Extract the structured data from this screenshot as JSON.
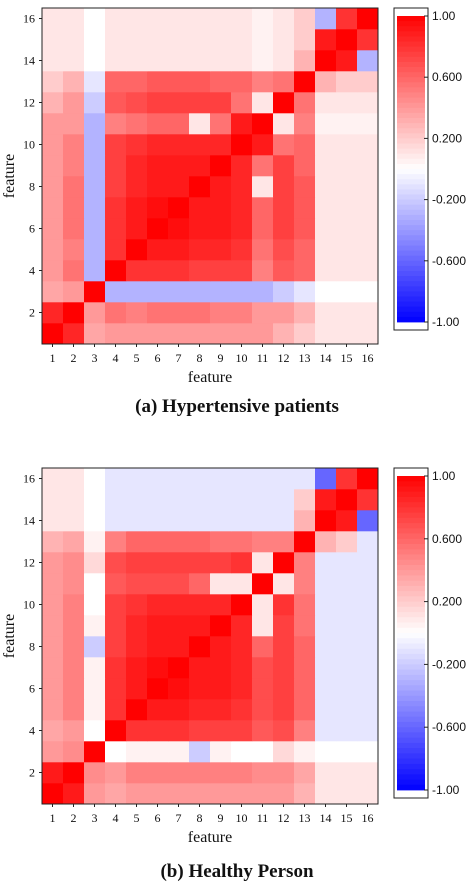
{
  "chart_data": [
    {
      "type": "heatmap",
      "caption": "(a) Hypertensive patients",
      "xlabel": "feature",
      "ylabel": "feature",
      "x_ticks": [
        "1",
        "2",
        "3",
        "4",
        "5",
        "6",
        "7",
        "8",
        "9",
        "10",
        "11",
        "12",
        "13",
        "14",
        "15",
        "16"
      ],
      "y_ticks": [
        "2",
        "4",
        "6",
        "8",
        "10",
        "12",
        "14",
        "16"
      ],
      "colorbar_ticks": [
        "1.00",
        "0.600",
        "0.200",
        "-0.200",
        "-0.600",
        "-1.00"
      ],
      "colorbar_values": [
        1.0,
        0.6,
        0.2,
        -0.2,
        -0.6,
        -1.0
      ],
      "vmin": -1.0,
      "vmax": 1.0,
      "colors": {
        "low": "#0000ff",
        "mid": "#ffffff",
        "high": "#ff0000"
      },
      "matrix": [
        [
          1.0,
          0.85,
          0.35,
          0.4,
          0.4,
          0.4,
          0.4,
          0.4,
          0.4,
          0.4,
          0.4,
          0.3,
          0.2,
          0.1,
          0.1,
          0.1
        ],
        [
          0.85,
          1.0,
          0.4,
          0.55,
          0.5,
          0.55,
          0.55,
          0.55,
          0.5,
          0.5,
          0.4,
          0.4,
          0.3,
          0.1,
          0.1,
          0.1
        ],
        [
          0.35,
          0.4,
          1.0,
          -0.3,
          -0.3,
          -0.3,
          -0.3,
          -0.3,
          -0.3,
          -0.3,
          -0.3,
          -0.2,
          -0.1,
          0.0,
          0.0,
          0.0
        ],
        [
          0.4,
          0.55,
          -0.3,
          1.0,
          0.8,
          0.8,
          0.8,
          0.75,
          0.75,
          0.75,
          0.5,
          0.65,
          0.6,
          0.1,
          0.1,
          0.1
        ],
        [
          0.4,
          0.5,
          -0.3,
          0.8,
          1.0,
          0.9,
          0.9,
          0.85,
          0.85,
          0.8,
          0.55,
          0.7,
          0.6,
          0.1,
          0.1,
          0.1
        ],
        [
          0.4,
          0.55,
          -0.3,
          0.8,
          0.9,
          1.0,
          0.95,
          0.9,
          0.9,
          0.85,
          0.6,
          0.75,
          0.65,
          0.1,
          0.1,
          0.1
        ],
        [
          0.4,
          0.55,
          -0.3,
          0.8,
          0.9,
          0.95,
          1.0,
          0.9,
          0.9,
          0.85,
          0.6,
          0.75,
          0.65,
          0.1,
          0.1,
          0.1
        ],
        [
          0.4,
          0.55,
          -0.3,
          0.75,
          0.85,
          0.9,
          0.9,
          1.0,
          0.9,
          0.85,
          0.1,
          0.75,
          0.65,
          0.1,
          0.1,
          0.1
        ],
        [
          0.4,
          0.5,
          -0.3,
          0.75,
          0.85,
          0.9,
          0.9,
          0.9,
          1.0,
          0.85,
          0.55,
          0.75,
          0.6,
          0.1,
          0.1,
          0.1
        ],
        [
          0.4,
          0.5,
          -0.3,
          0.75,
          0.8,
          0.85,
          0.85,
          0.85,
          0.85,
          1.0,
          0.9,
          0.55,
          0.6,
          0.1,
          0.1,
          0.1
        ],
        [
          0.4,
          0.4,
          -0.3,
          0.5,
          0.55,
          0.6,
          0.6,
          0.1,
          0.55,
          0.9,
          1.0,
          0.1,
          0.5,
          0.05,
          0.05,
          0.05
        ],
        [
          0.3,
          0.4,
          -0.2,
          0.65,
          0.7,
          0.75,
          0.75,
          0.75,
          0.75,
          0.55,
          0.1,
          1.0,
          0.55,
          0.1,
          0.1,
          0.1
        ],
        [
          0.2,
          0.3,
          -0.1,
          0.6,
          0.6,
          0.65,
          0.65,
          0.65,
          0.6,
          0.6,
          0.5,
          0.55,
          1.0,
          0.3,
          0.2,
          0.2
        ],
        [
          0.1,
          0.1,
          0.0,
          0.1,
          0.1,
          0.1,
          0.1,
          0.1,
          0.1,
          0.1,
          0.05,
          0.1,
          0.3,
          1.0,
          0.9,
          -0.3
        ],
        [
          0.1,
          0.1,
          0.0,
          0.1,
          0.1,
          0.1,
          0.1,
          0.1,
          0.1,
          0.1,
          0.05,
          0.1,
          0.2,
          0.9,
          1.0,
          0.8
        ],
        [
          0.1,
          0.1,
          0.0,
          0.1,
          0.1,
          0.1,
          0.1,
          0.1,
          0.1,
          0.1,
          0.05,
          0.1,
          0.2,
          -0.3,
          0.8,
          1.0
        ]
      ]
    },
    {
      "type": "heatmap",
      "caption": "(b) Healthy Person",
      "xlabel": "feature",
      "ylabel": "feature",
      "x_ticks": [
        "1",
        "2",
        "3",
        "4",
        "5",
        "6",
        "7",
        "8",
        "9",
        "10",
        "11",
        "12",
        "13",
        "14",
        "15",
        "16"
      ],
      "y_ticks": [
        "2",
        "4",
        "6",
        "8",
        "10",
        "12",
        "14",
        "16"
      ],
      "colorbar_ticks": [
        "1.00",
        "0.600",
        "0.200",
        "-0.200",
        "-0.600",
        "-1.00"
      ],
      "colorbar_values": [
        1.0,
        0.6,
        0.2,
        -0.2,
        -0.6,
        -1.0
      ],
      "vmin": -1.0,
      "vmax": 1.0,
      "colors": {
        "low": "#0000ff",
        "mid": "#ffffff",
        "high": "#ff0000"
      },
      "matrix": [
        [
          1.0,
          0.9,
          0.4,
          0.35,
          0.4,
          0.4,
          0.4,
          0.4,
          0.4,
          0.4,
          0.4,
          0.4,
          0.3,
          0.1,
          0.1,
          0.1
        ],
        [
          0.9,
          1.0,
          0.45,
          0.4,
          0.5,
          0.5,
          0.5,
          0.5,
          0.5,
          0.5,
          0.45,
          0.45,
          0.35,
          0.1,
          0.1,
          0.1
        ],
        [
          0.4,
          0.45,
          1.0,
          0.0,
          0.05,
          0.05,
          0.05,
          -0.2,
          0.05,
          0.0,
          0.0,
          0.15,
          0.05,
          0.0,
          0.0,
          0.0
        ],
        [
          0.35,
          0.4,
          0.0,
          1.0,
          0.8,
          0.8,
          0.8,
          0.75,
          0.75,
          0.75,
          0.65,
          0.7,
          0.5,
          -0.1,
          -0.1,
          -0.1
        ],
        [
          0.4,
          0.5,
          0.05,
          0.8,
          1.0,
          0.9,
          0.9,
          0.85,
          0.85,
          0.8,
          0.7,
          0.75,
          0.6,
          -0.1,
          -0.1,
          -0.1
        ],
        [
          0.4,
          0.5,
          0.05,
          0.8,
          0.9,
          1.0,
          0.95,
          0.9,
          0.9,
          0.85,
          0.7,
          0.75,
          0.6,
          -0.1,
          -0.1,
          -0.1
        ],
        [
          0.4,
          0.5,
          0.05,
          0.8,
          0.9,
          0.95,
          1.0,
          0.9,
          0.9,
          0.85,
          0.7,
          0.75,
          0.6,
          -0.1,
          -0.1,
          -0.1
        ],
        [
          0.4,
          0.5,
          -0.2,
          0.75,
          0.85,
          0.9,
          0.9,
          1.0,
          0.9,
          0.85,
          0.6,
          0.75,
          0.6,
          -0.1,
          -0.1,
          -0.1
        ],
        [
          0.4,
          0.5,
          0.05,
          0.75,
          0.85,
          0.9,
          0.9,
          0.9,
          1.0,
          0.85,
          0.1,
          0.75,
          0.55,
          -0.1,
          -0.1,
          -0.1
        ],
        [
          0.4,
          0.5,
          0.0,
          0.75,
          0.8,
          0.85,
          0.85,
          0.85,
          0.85,
          1.0,
          0.1,
          0.8,
          0.55,
          -0.1,
          -0.1,
          -0.1
        ],
        [
          0.4,
          0.45,
          0.0,
          0.65,
          0.7,
          0.7,
          0.7,
          0.6,
          0.1,
          0.1,
          1.0,
          0.1,
          0.5,
          -0.1,
          -0.1,
          -0.1
        ],
        [
          0.4,
          0.45,
          0.15,
          0.7,
          0.75,
          0.75,
          0.75,
          0.75,
          0.75,
          0.8,
          0.1,
          1.0,
          0.5,
          -0.1,
          -0.1,
          -0.1
        ],
        [
          0.3,
          0.35,
          0.05,
          0.5,
          0.6,
          0.6,
          0.6,
          0.6,
          0.55,
          0.55,
          0.5,
          0.5,
          1.0,
          0.3,
          0.2,
          -0.1
        ],
        [
          0.1,
          0.1,
          0.0,
          -0.1,
          -0.1,
          -0.1,
          -0.1,
          -0.1,
          -0.1,
          -0.1,
          -0.1,
          -0.1,
          0.3,
          1.0,
          0.9,
          -0.6
        ],
        [
          0.1,
          0.1,
          0.0,
          -0.1,
          -0.1,
          -0.1,
          -0.1,
          -0.1,
          -0.1,
          -0.1,
          -0.1,
          -0.1,
          0.2,
          0.9,
          1.0,
          0.8
        ],
        [
          0.1,
          0.1,
          0.0,
          -0.1,
          -0.1,
          -0.1,
          -0.1,
          -0.1,
          -0.1,
          -0.1,
          -0.1,
          -0.1,
          -0.1,
          -0.6,
          0.8,
          1.0
        ]
      ]
    }
  ]
}
